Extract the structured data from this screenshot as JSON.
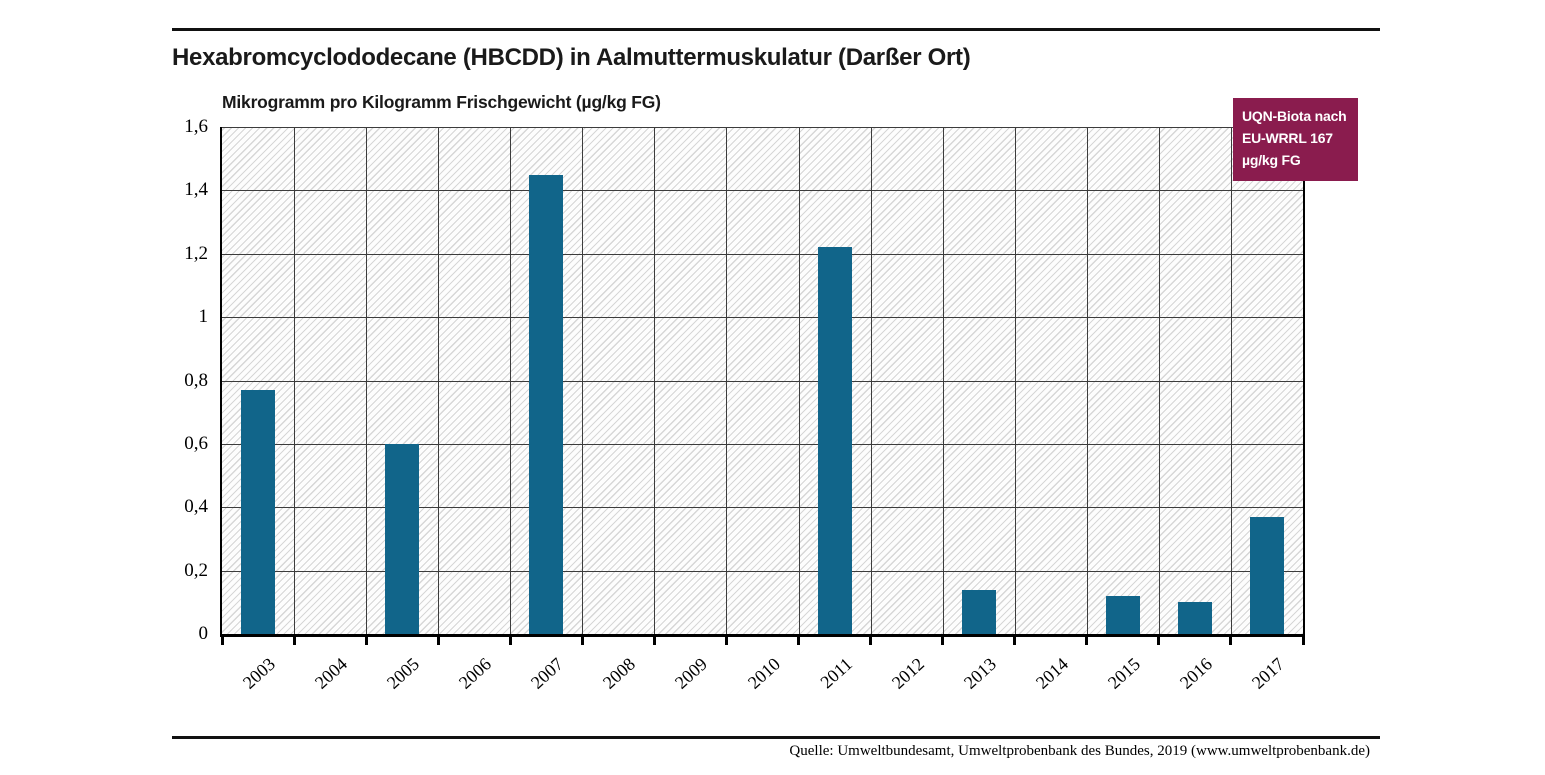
{
  "page": {
    "source": "Quelle: Umweltbundesamt, Umweltprobenbank des Bundes, 2019 (www.umweltprobenbank.de)"
  },
  "legend": {
    "lines": [
      "UQN-Biota nach",
      "EU-WRRL 167",
      "µg/kg FG"
    ],
    "bg_color": "#8A1C4E",
    "text_color": "#FFFFFF"
  },
  "chart_data": {
    "type": "bar",
    "title": "Hexabromcyclododecane (HBCDD) in Aalmuttermuskulatur (Darßer Ort)",
    "ylabel": "Mikrogramm pro Kilogramm Frischgewicht (µg/kg FG)",
    "xlabel": "",
    "categories": [
      "2003",
      "2004",
      "2005",
      "2006",
      "2007",
      "2008",
      "2009",
      "2010",
      "2011",
      "2012",
      "2013",
      "2014",
      "2015",
      "2016",
      "2017"
    ],
    "values": [
      0.77,
      0,
      0.6,
      0,
      1.45,
      0,
      0,
      0,
      1.22,
      0,
      0.14,
      0,
      0.12,
      0.1,
      0.37
    ],
    "unit": "µg/kg FG",
    "ylim": [
      0,
      1.6
    ],
    "ytick_step": 0.2,
    "ytick_labels": [
      "0",
      "0,2",
      "0,4",
      "0,6",
      "0,8",
      "1",
      "1,2",
      "1,4",
      "1,6"
    ],
    "grid": true,
    "hatch_background": true,
    "bar_color": "#11658A",
    "gridline_color": "#3C3C3C",
    "annotation": "UQN-Biota nach EU-WRRL 167 µg/kg FG",
    "annotation_position": "top-right"
  }
}
